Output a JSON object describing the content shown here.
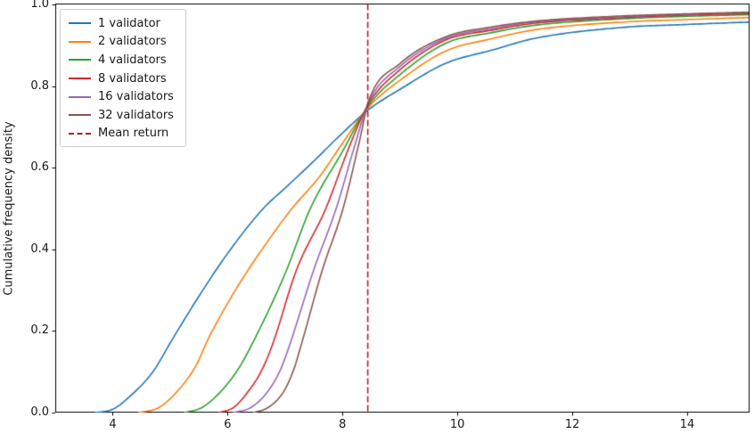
{
  "chart_data": {
    "type": "line",
    "subtype": "cumulative-distribution-curves",
    "title": "",
    "xlabel": "",
    "ylabel": "Cumulative frequency density",
    "xlim": [
      3.0,
      15.07
    ],
    "ylim": [
      0.0,
      1.0
    ],
    "grid": false,
    "legend_position": "upper left",
    "x_ticks": [
      4,
      6,
      8,
      10,
      12,
      14
    ],
    "x_tick_labels": [
      "4",
      "6",
      "8",
      "10",
      "12",
      "14"
    ],
    "y_ticks": [
      0.0,
      0.2,
      0.4,
      0.6,
      0.8,
      1.0
    ],
    "y_tick_labels": [
      "0.0",
      "0.2",
      "0.4",
      "0.6",
      "0.8",
      "1.0"
    ],
    "axis_color": "#000000",
    "mean_line": {
      "label": "Mean return",
      "x": 8.44,
      "color": "#b22222",
      "style": "dashed",
      "orientation": "vertical"
    },
    "series": [
      {
        "name": "1 validator",
        "color": "#1f77b4",
        "points": [
          [
            3.7,
            0.0
          ],
          [
            4.0,
            0.008
          ],
          [
            4.3,
            0.04
          ],
          [
            4.7,
            0.1
          ],
          [
            5.04,
            0.18
          ],
          [
            5.5,
            0.285
          ],
          [
            6.0,
            0.39
          ],
          [
            6.62,
            0.5
          ],
          [
            7.0,
            0.55
          ],
          [
            7.47,
            0.612
          ],
          [
            8.0,
            0.685
          ],
          [
            8.45,
            0.742
          ],
          [
            9.0,
            0.792
          ],
          [
            9.8,
            0.856
          ],
          [
            10.6,
            0.888
          ],
          [
            11.35,
            0.917
          ],
          [
            12.9,
            0.944
          ],
          [
            14.0,
            0.951
          ],
          [
            15.1,
            0.957
          ]
        ]
      },
      {
        "name": "2 validators",
        "color": "#ff7f0e",
        "points": [
          [
            4.45,
            0.0
          ],
          [
            4.8,
            0.012
          ],
          [
            5.11,
            0.05
          ],
          [
            5.45,
            0.115
          ],
          [
            5.66,
            0.18
          ],
          [
            6.2,
            0.315
          ],
          [
            6.7,
            0.42
          ],
          [
            7.12,
            0.5
          ],
          [
            7.6,
            0.578
          ],
          [
            8.0,
            0.66
          ],
          [
            8.45,
            0.748
          ],
          [
            9.0,
            0.814
          ],
          [
            9.8,
            0.886
          ],
          [
            10.6,
            0.916
          ],
          [
            11.35,
            0.938
          ],
          [
            12.9,
            0.957
          ],
          [
            14.0,
            0.963
          ],
          [
            15.1,
            0.968
          ]
        ]
      },
      {
        "name": "4 validators",
        "color": "#2ca02c",
        "points": [
          [
            5.25,
            0.0
          ],
          [
            5.55,
            0.012
          ],
          [
            5.87,
            0.05
          ],
          [
            6.2,
            0.11
          ],
          [
            6.47,
            0.18
          ],
          [
            7.0,
            0.34
          ],
          [
            7.44,
            0.5
          ],
          [
            8.0,
            0.64
          ],
          [
            8.45,
            0.752
          ],
          [
            9.0,
            0.828
          ],
          [
            9.8,
            0.905
          ],
          [
            10.6,
            0.931
          ],
          [
            11.35,
            0.949
          ],
          [
            12.9,
            0.965
          ],
          [
            14.0,
            0.971
          ],
          [
            15.1,
            0.975
          ]
        ]
      },
      {
        "name": "8 validators",
        "color": "#d62728",
        "points": [
          [
            5.85,
            0.0
          ],
          [
            6.1,
            0.012
          ],
          [
            6.35,
            0.05
          ],
          [
            6.6,
            0.105
          ],
          [
            6.79,
            0.17
          ],
          [
            7.2,
            0.35
          ],
          [
            7.71,
            0.5
          ],
          [
            8.1,
            0.645
          ],
          [
            8.45,
            0.756
          ],
          [
            9.0,
            0.84
          ],
          [
            9.8,
            0.913
          ],
          [
            10.6,
            0.937
          ],
          [
            11.35,
            0.954
          ],
          [
            12.9,
            0.968
          ],
          [
            14.0,
            0.974
          ],
          [
            15.1,
            0.978
          ]
        ]
      },
      {
        "name": "16 validators",
        "color": "#9467bd",
        "points": [
          [
            6.1,
            0.0
          ],
          [
            6.4,
            0.012
          ],
          [
            6.69,
            0.05
          ],
          [
            6.92,
            0.105
          ],
          [
            7.09,
            0.17
          ],
          [
            7.5,
            0.35
          ],
          [
            7.89,
            0.5
          ],
          [
            8.2,
            0.648
          ],
          [
            8.45,
            0.759
          ],
          [
            9.0,
            0.848
          ],
          [
            9.8,
            0.917
          ],
          [
            10.6,
            0.941
          ],
          [
            11.35,
            0.957
          ],
          [
            12.9,
            0.97
          ],
          [
            14.0,
            0.976
          ],
          [
            15.1,
            0.98
          ]
        ]
      },
      {
        "name": "32 validators",
        "color": "#8c564b",
        "points": [
          [
            6.45,
            0.0
          ],
          [
            6.7,
            0.012
          ],
          [
            6.97,
            0.05
          ],
          [
            7.15,
            0.105
          ],
          [
            7.29,
            0.17
          ],
          [
            7.65,
            0.35
          ],
          [
            8.01,
            0.5
          ],
          [
            8.3,
            0.668
          ],
          [
            8.45,
            0.762
          ],
          [
            9.0,
            0.855
          ],
          [
            9.8,
            0.921
          ],
          [
            10.6,
            0.945
          ],
          [
            11.35,
            0.959
          ],
          [
            12.9,
            0.972
          ],
          [
            14.0,
            0.977
          ],
          [
            15.1,
            0.981
          ]
        ]
      }
    ]
  }
}
